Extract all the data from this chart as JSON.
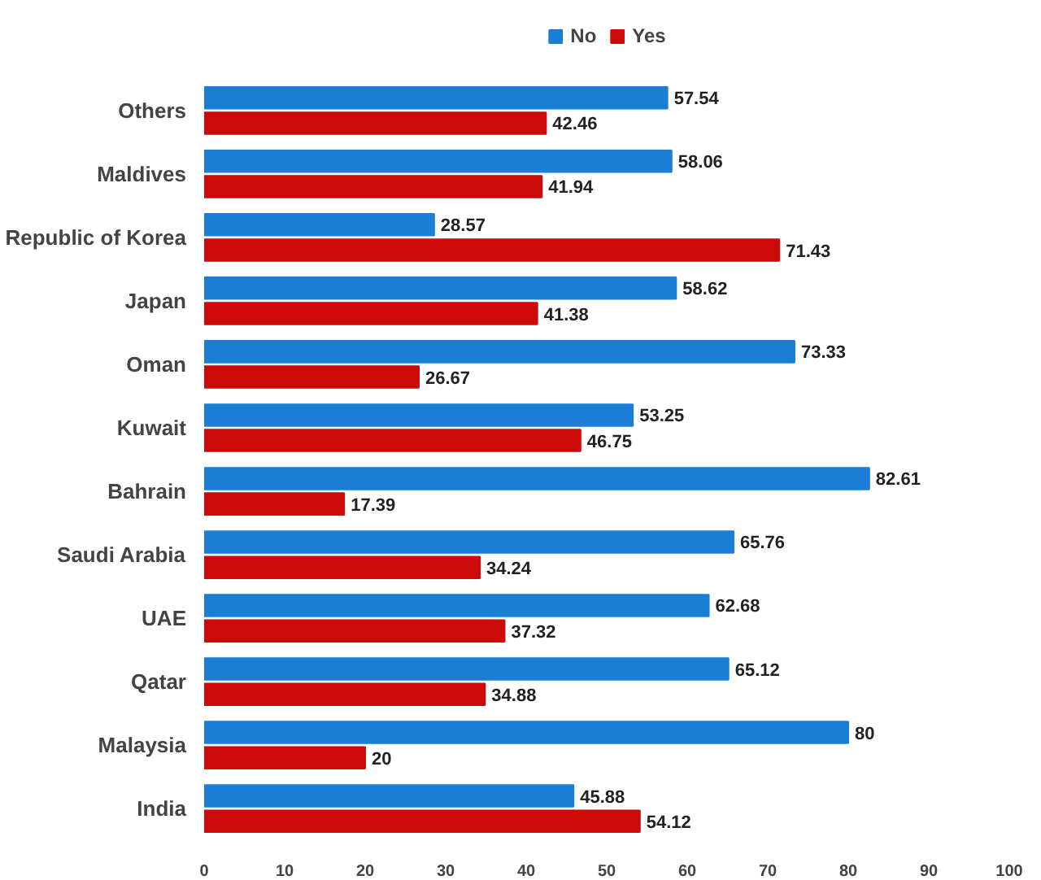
{
  "chart_data": {
    "type": "bar",
    "orientation": "horizontal",
    "categories": [
      "Others",
      "Maldives",
      "Republic of Korea",
      "Japan",
      "Oman",
      "Kuwait",
      "Bahrain",
      "Saudi Arabia",
      "UAE",
      "Qatar",
      "Malaysia",
      "India"
    ],
    "series": [
      {
        "name": "No",
        "color": "#1a7fd4",
        "values": [
          57.54,
          58.06,
          28.57,
          58.62,
          73.33,
          53.25,
          82.61,
          65.76,
          62.68,
          65.12,
          80,
          45.88
        ]
      },
      {
        "name": "Yes",
        "color": "#cc0a0a",
        "values": [
          42.46,
          41.94,
          71.43,
          41.38,
          26.67,
          46.75,
          17.39,
          34.24,
          37.32,
          34.88,
          20,
          54.12
        ]
      }
    ],
    "xlim": [
      0,
      100
    ],
    "xticks": [
      0,
      10,
      20,
      30,
      40,
      50,
      60,
      70,
      80,
      90,
      100
    ],
    "legend": "top",
    "data_labels": true
  }
}
